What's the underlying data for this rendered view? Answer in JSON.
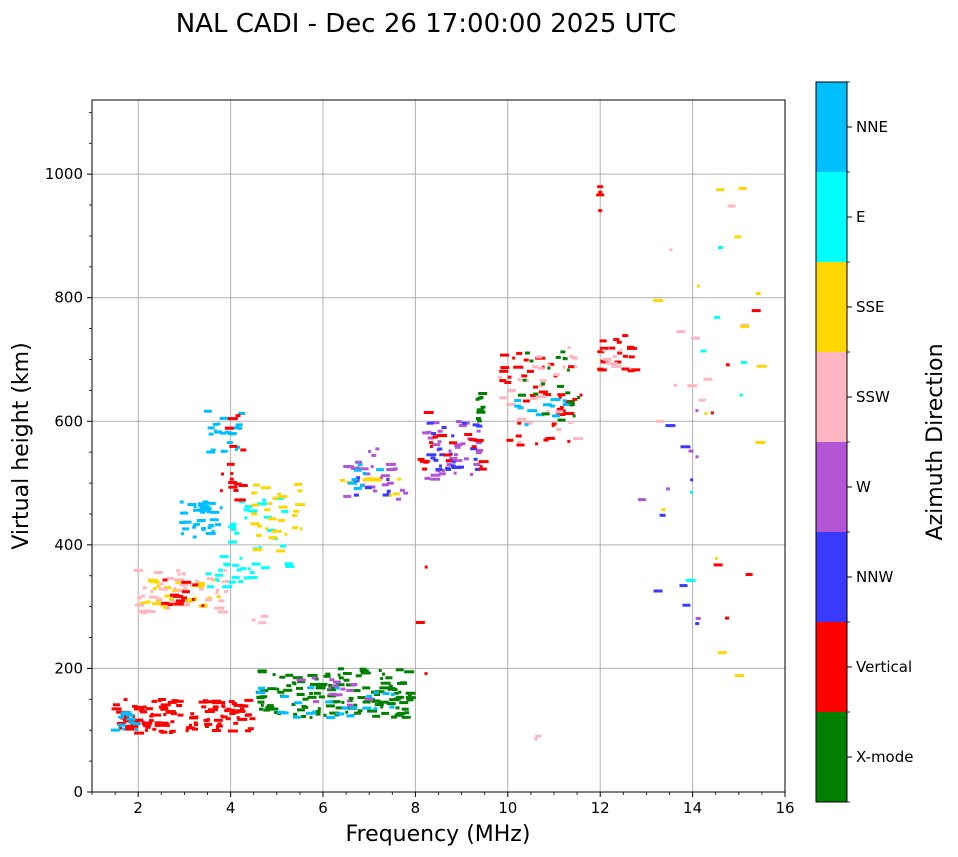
{
  "chart_data": {
    "type": "scatter",
    "title": "NAL CADI - Dec 26 17:00:00 2025 UTC",
    "xlabel": "Frequency (MHz)",
    "ylabel": "Virtual height (km)",
    "xlim": [
      1,
      16
    ],
    "ylim": [
      0,
      1120
    ],
    "xticks": [
      2,
      4,
      6,
      8,
      10,
      12,
      14,
      16
    ],
    "yticks": [
      0,
      200,
      400,
      600,
      800,
      1000
    ],
    "grid": true,
    "colorbar": {
      "label": "Azimuth Direction",
      "categories": [
        {
          "name": "X-mode",
          "color": "#008000"
        },
        {
          "name": "Vertical",
          "color": "#ff0000"
        },
        {
          "name": "NNW",
          "color": "#3a3aff"
        },
        {
          "name": "W",
          "color": "#b356d6"
        },
        {
          "name": "SSW",
          "color": "#ffb6c1"
        },
        {
          "name": "SSE",
          "color": "#ffd700"
        },
        {
          "name": "E",
          "color": "#00ffff"
        },
        {
          "name": "NNE",
          "color": "#00bfff"
        }
      ]
    },
    "clusters": [
      {
        "category": "Vertical",
        "x": [
          1.5,
          4.5
        ],
        "y": [
          95,
          150
        ],
        "n": 130
      },
      {
        "category": "X-mode",
        "x": [
          4.6,
          7.9
        ],
        "y": [
          120,
          200
        ],
        "n": 140
      },
      {
        "category": "NNE",
        "x": [
          4.6,
          7.6
        ],
        "y": [
          120,
          170
        ],
        "n": 25
      },
      {
        "category": "W",
        "x": [
          5.5,
          7.2
        ],
        "y": [
          140,
          185
        ],
        "n": 15
      },
      {
        "category": "NNE",
        "x": [
          1.5,
          2.0
        ],
        "y": [
          100,
          130
        ],
        "n": 12
      },
      {
        "category": "SSE",
        "x": [
          2.0,
          3.8
        ],
        "y": [
          295,
          345
        ],
        "n": 35
      },
      {
        "category": "SSW",
        "x": [
          2.0,
          4.0
        ],
        "y": [
          290,
          360
        ],
        "n": 45
      },
      {
        "category": "Vertical",
        "x": [
          2.5,
          3.6
        ],
        "y": [
          300,
          350
        ],
        "n": 15
      },
      {
        "category": "E",
        "x": [
          3.5,
          4.5
        ],
        "y": [
          330,
          370
        ],
        "n": 18
      },
      {
        "category": "NNE",
        "x": [
          2.9,
          3.8
        ],
        "y": [
          410,
          470
        ],
        "n": 40
      },
      {
        "category": "NNE",
        "x": [
          3.5,
          4.3
        ],
        "y": [
          540,
          620
        ],
        "n": 25
      },
      {
        "category": "E",
        "x": [
          3.8,
          5.3
        ],
        "y": [
          360,
          480
        ],
        "n": 30
      },
      {
        "category": "SSE",
        "x": [
          4.5,
          5.6
        ],
        "y": [
          390,
          500
        ],
        "n": 30
      },
      {
        "category": "Vertical",
        "x": [
          3.8,
          4.3
        ],
        "y": [
          460,
          610
        ],
        "n": 18
      },
      {
        "category": "SSE",
        "x": [
          6.4,
          7.8
        ],
        "y": [
          480,
          510
        ],
        "n": 12
      },
      {
        "category": "W",
        "x": [
          6.5,
          7.8
        ],
        "y": [
          470,
          560
        ],
        "n": 25
      },
      {
        "category": "NNW",
        "x": [
          6.5,
          7.6
        ],
        "y": [
          480,
          520
        ],
        "n": 8
      },
      {
        "category": "NNE",
        "x": [
          6.5,
          7.5
        ],
        "y": [
          490,
          530
        ],
        "n": 8
      },
      {
        "category": "W",
        "x": [
          8.2,
          9.4
        ],
        "y": [
          500,
          600
        ],
        "n": 35
      },
      {
        "category": "NNW",
        "x": [
          8.3,
          9.4
        ],
        "y": [
          520,
          600
        ],
        "n": 25
      },
      {
        "category": "Vertical",
        "x": [
          8.1,
          9.5
        ],
        "y": [
          520,
          580
        ],
        "n": 18
      },
      {
        "category": "X-mode",
        "x": [
          9.3,
          9.5
        ],
        "y": [
          590,
          650
        ],
        "n": 10
      },
      {
        "category": "Vertical",
        "x": [
          9.8,
          11.6
        ],
        "y": [
          560,
          720
        ],
        "n": 45
      },
      {
        "category": "SSW",
        "x": [
          9.8,
          11.6
        ],
        "y": [
          560,
          720
        ],
        "n": 30
      },
      {
        "category": "NNE",
        "x": [
          10.2,
          11.3
        ],
        "y": [
          590,
          640
        ],
        "n": 12
      },
      {
        "category": "X-mode",
        "x": [
          10.3,
          11.6
        ],
        "y": [
          600,
          720
        ],
        "n": 20
      },
      {
        "category": "Vertical",
        "x": [
          12.0,
          12.8
        ],
        "y": [
          680,
          740
        ],
        "n": 20
      },
      {
        "category": "SSW",
        "x": [
          12.0,
          12.5
        ],
        "y": [
          680,
          730
        ],
        "n": 8
      },
      {
        "category": "Vertical",
        "x": [
          12.0,
          12.0
        ],
        "y": [
          930,
          990
        ],
        "n": 6
      },
      {
        "category": "SSW",
        "x": [
          13.0,
          15.2
        ],
        "y": [
          600,
          990
        ],
        "n": 10
      },
      {
        "category": "SSE",
        "x": [
          13.2,
          15.8
        ],
        "y": [
          170,
          980
        ],
        "n": 14
      },
      {
        "category": "NNW",
        "x": [
          13.2,
          14.2
        ],
        "y": [
          255,
          755
        ],
        "n": 8
      },
      {
        "category": "E",
        "x": [
          13.8,
          15.2
        ],
        "y": [
          215,
          895
        ],
        "n": 7
      },
      {
        "category": "Vertical",
        "x": [
          13.8,
          15.8
        ],
        "y": [
          235,
          920
        ],
        "n": 6
      },
      {
        "category": "W",
        "x": [
          12.5,
          15.0
        ],
        "y": [
          90,
          720
        ],
        "n": 6
      },
      {
        "category": "SSW",
        "x": [
          10.5,
          10.9
        ],
        "y": [
          85,
          92
        ],
        "n": 2
      },
      {
        "category": "Vertical",
        "x": [
          8.1,
          8.3
        ],
        "y": [
          185,
          655
        ],
        "n": 5
      },
      {
        "category": "SSW",
        "x": [
          4.4,
          4.8
        ],
        "y": [
          270,
          290
        ],
        "n": 3
      }
    ]
  }
}
